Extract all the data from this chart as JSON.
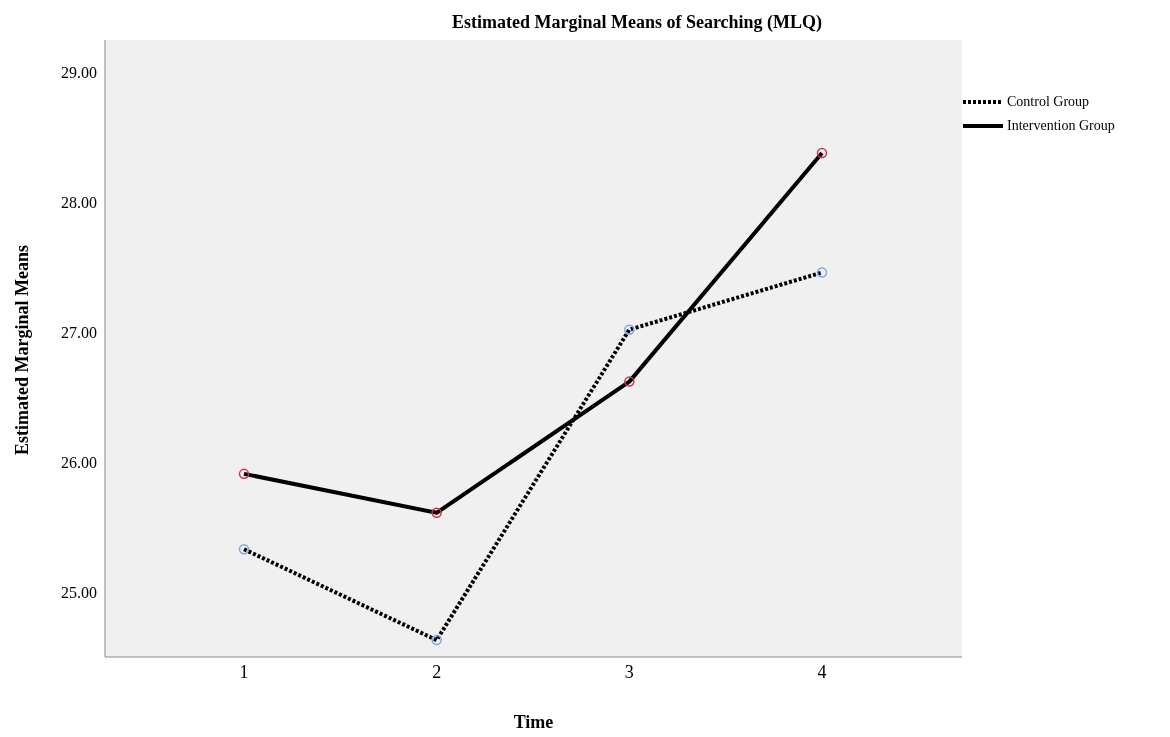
{
  "chart_data": {
    "type": "line",
    "title": "Estimated Marginal Means of Searching (MLQ)",
    "xlabel": "Time",
    "ylabel": "Estimated Marginal Means",
    "categories": [
      "1",
      "2",
      "3",
      "4"
    ],
    "series": [
      {
        "name": "Control Group",
        "color": "#000000",
        "line_style": "dotted",
        "colors": [
          "#7aa7e6",
          "#7aa7e6",
          "#7aa7e6",
          "#7aa7e6"
        ],
        "values": [
          25.33,
          24.63,
          27.02,
          27.46
        ]
      },
      {
        "name": "Intervention Group",
        "color": "#000000",
        "line_style": "solid",
        "colors": [
          "#d6304f",
          "#d6304f",
          "#d6304f",
          "#d6304f"
        ],
        "values": [
          25.91,
          25.61,
          26.62,
          28.38
        ]
      }
    ],
    "ylim": [
      24.5,
      29.25
    ],
    "yticks": [
      {
        "value": 25,
        "label": "25.00"
      },
      {
        "value": 26,
        "label": "26.00"
      },
      {
        "value": 27,
        "label": "27.00"
      },
      {
        "value": 28,
        "label": "28.00"
      },
      {
        "value": 29,
        "label": "29.00"
      }
    ],
    "grid": false,
    "legend": "top right",
    "marker": "circle"
  }
}
